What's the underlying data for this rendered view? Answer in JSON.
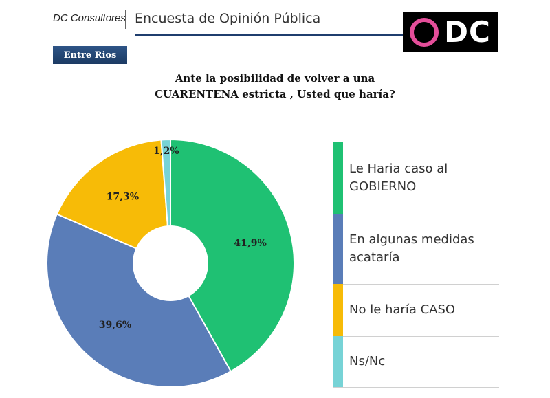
{
  "header": {
    "brand": "DC Consultores",
    "title": "Encuesta de Opinión Pública",
    "logo_text": "DC",
    "region": "Entre Rios"
  },
  "question": {
    "line1": "Ante la posibilidad de volver a una",
    "line2": "CUARENTENA estricta , Usted que haría?"
  },
  "colors": {
    "green": "#1fc173",
    "blue": "#5a7db8",
    "yellow": "#f7bb07",
    "teal": "#77d3d6",
    "header_navy": "#1f3e6e",
    "logo_pink": "#e54e9a"
  },
  "chart_data": {
    "type": "pie",
    "donut": true,
    "title": "Ante la posibilidad de volver a una CUARENTENA estricta , Usted que haría?",
    "legend_position": "right",
    "slices": [
      {
        "label_lines": [
          "Le Haria caso al",
          "GOBIERNO"
        ],
        "value": 41.9,
        "value_label": "41,9%",
        "color": "#1fc173"
      },
      {
        "label_lines": [
          "En algunas medidas",
          "acataría"
        ],
        "value": 39.6,
        "value_label": "39,6%",
        "color": "#5a7db8"
      },
      {
        "label_lines": [
          "No le haría CASO"
        ],
        "value": 17.3,
        "value_label": "17,3%",
        "color": "#f7bb07"
      },
      {
        "label_lines": [
          "Ns/Nc"
        ],
        "value": 1.2,
        "value_label": "1,2%",
        "color": "#77d3d6"
      }
    ]
  }
}
